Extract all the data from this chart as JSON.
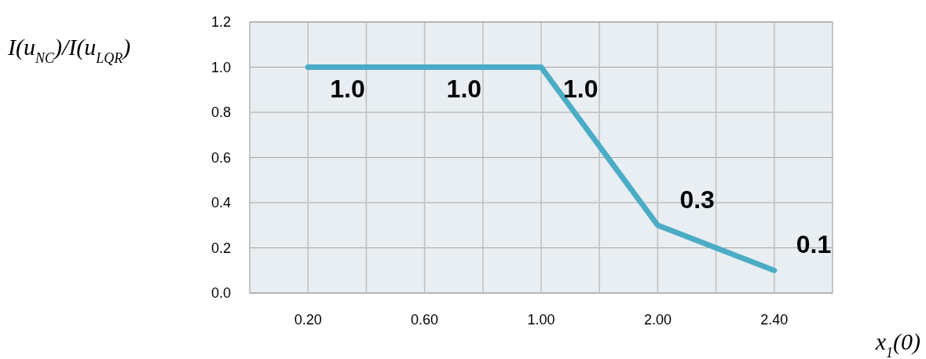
{
  "chart_data": {
    "type": "line",
    "ylabel": "I(u$_{NC}$)/I(u$_{LQR}$)",
    "xlabel": "x$_{1}$(0)",
    "categories": [
      "0.20",
      "0.60",
      "1.00",
      "2.00",
      "2.40"
    ],
    "series": [
      {
        "color": "#4bacc6",
        "values": [
          1.0,
          1.0,
          1.0,
          0.3,
          0.1
        ]
      }
    ],
    "value_labels": [
      "1.0",
      "1.0",
      "1.0",
      "0.3",
      "0.1"
    ],
    "ylim": [
      0,
      1.2
    ],
    "yticks": [
      {
        "value": 0,
        "label": "0.0"
      },
      {
        "value": 0.2,
        "label": "0.2"
      },
      {
        "value": 0.4,
        "label": "0.4"
      },
      {
        "value": 0.6,
        "label": "0.6"
      },
      {
        "value": 0.8,
        "label": "0.8"
      },
      {
        "value": 1.0,
        "label": "1.0"
      },
      {
        "value": 1.2,
        "label": "1.2"
      }
    ],
    "grid": true,
    "marker": "none",
    "line_style": "solid"
  }
}
